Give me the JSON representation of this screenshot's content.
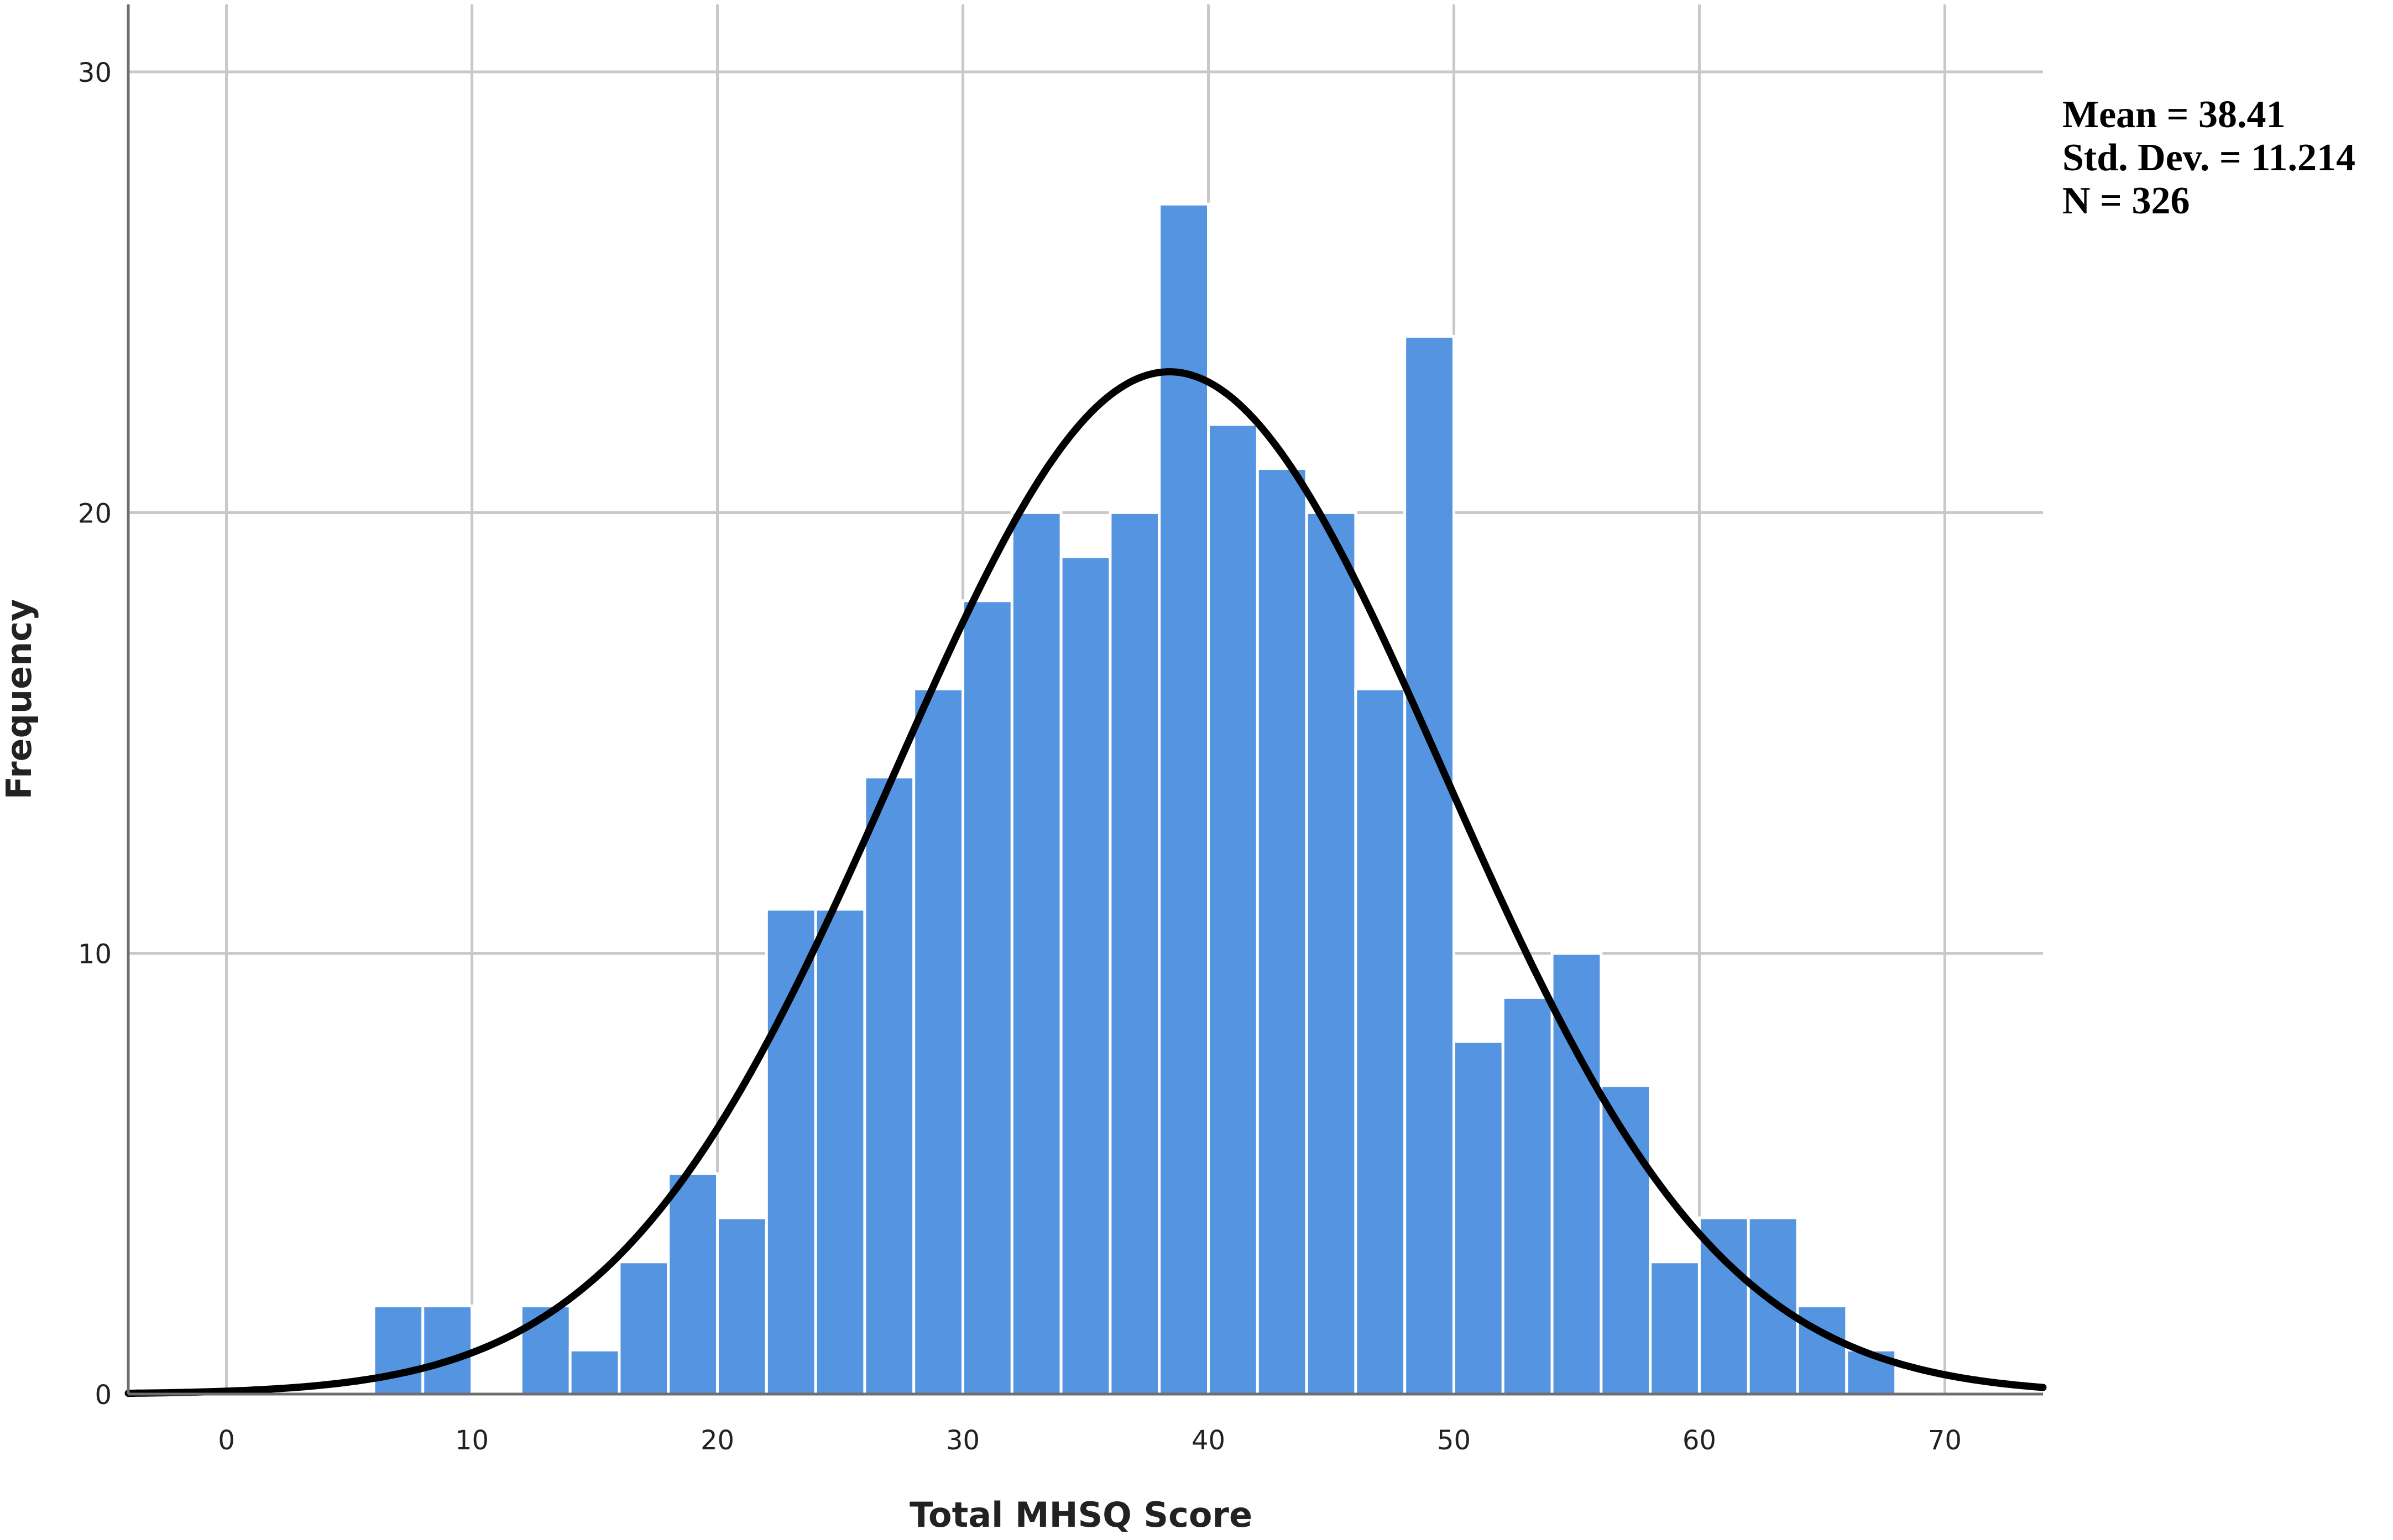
{
  "chart_data": {
    "type": "bar",
    "subtype": "histogram",
    "xlabel": "Total MHSQ Score",
    "ylabel": "Frequency",
    "xlim": [
      -4,
      74
    ],
    "ylim": [
      0,
      30
    ],
    "xticks": [
      0,
      10,
      20,
      30,
      40,
      50,
      60,
      70
    ],
    "yticks": [
      0,
      10,
      20,
      30
    ],
    "grid": true,
    "bin_width": 2,
    "bins": [
      {
        "start": 6,
        "end": 8,
        "count": 2
      },
      {
        "start": 8,
        "end": 10,
        "count": 2
      },
      {
        "start": 10,
        "end": 12,
        "count": 0
      },
      {
        "start": 12,
        "end": 14,
        "count": 2
      },
      {
        "start": 14,
        "end": 16,
        "count": 1
      },
      {
        "start": 16,
        "end": 18,
        "count": 3
      },
      {
        "start": 18,
        "end": 20,
        "count": 5
      },
      {
        "start": 20,
        "end": 22,
        "count": 4
      },
      {
        "start": 22,
        "end": 24,
        "count": 11
      },
      {
        "start": 24,
        "end": 26,
        "count": 11
      },
      {
        "start": 26,
        "end": 28,
        "count": 14
      },
      {
        "start": 28,
        "end": 30,
        "count": 16
      },
      {
        "start": 30,
        "end": 32,
        "count": 18
      },
      {
        "start": 32,
        "end": 34,
        "count": 20
      },
      {
        "start": 34,
        "end": 36,
        "count": 19
      },
      {
        "start": 36,
        "end": 38,
        "count": 20
      },
      {
        "start": 38,
        "end": 40,
        "count": 27
      },
      {
        "start": 40,
        "end": 42,
        "count": 22
      },
      {
        "start": 42,
        "end": 44,
        "count": 21
      },
      {
        "start": 44,
        "end": 46,
        "count": 20
      },
      {
        "start": 46,
        "end": 48,
        "count": 16
      },
      {
        "start": 48,
        "end": 50,
        "count": 24
      },
      {
        "start": 50,
        "end": 52,
        "count": 8
      },
      {
        "start": 52,
        "end": 54,
        "count": 9
      },
      {
        "start": 54,
        "end": 56,
        "count": 10
      },
      {
        "start": 56,
        "end": 58,
        "count": 7
      },
      {
        "start": 58,
        "end": 60,
        "count": 3
      },
      {
        "start": 60,
        "end": 62,
        "count": 4
      },
      {
        "start": 62,
        "end": 64,
        "count": 4
      },
      {
        "start": 64,
        "end": 66,
        "count": 2
      },
      {
        "start": 66,
        "end": 68,
        "count": 1
      }
    ],
    "normal_curve": {
      "mean": 38.41,
      "std_dev": 11.214,
      "n": 326
    },
    "stats_box": [
      "Mean = 38.41",
      "Std. Dev. = 11.214",
      "N = 326"
    ],
    "legend_position": "top-right",
    "colors": {
      "bar_fill": "#5494e1",
      "bar_edge": "#ffffff",
      "curve": "#000000",
      "grid": "#c8c8c8"
    }
  }
}
